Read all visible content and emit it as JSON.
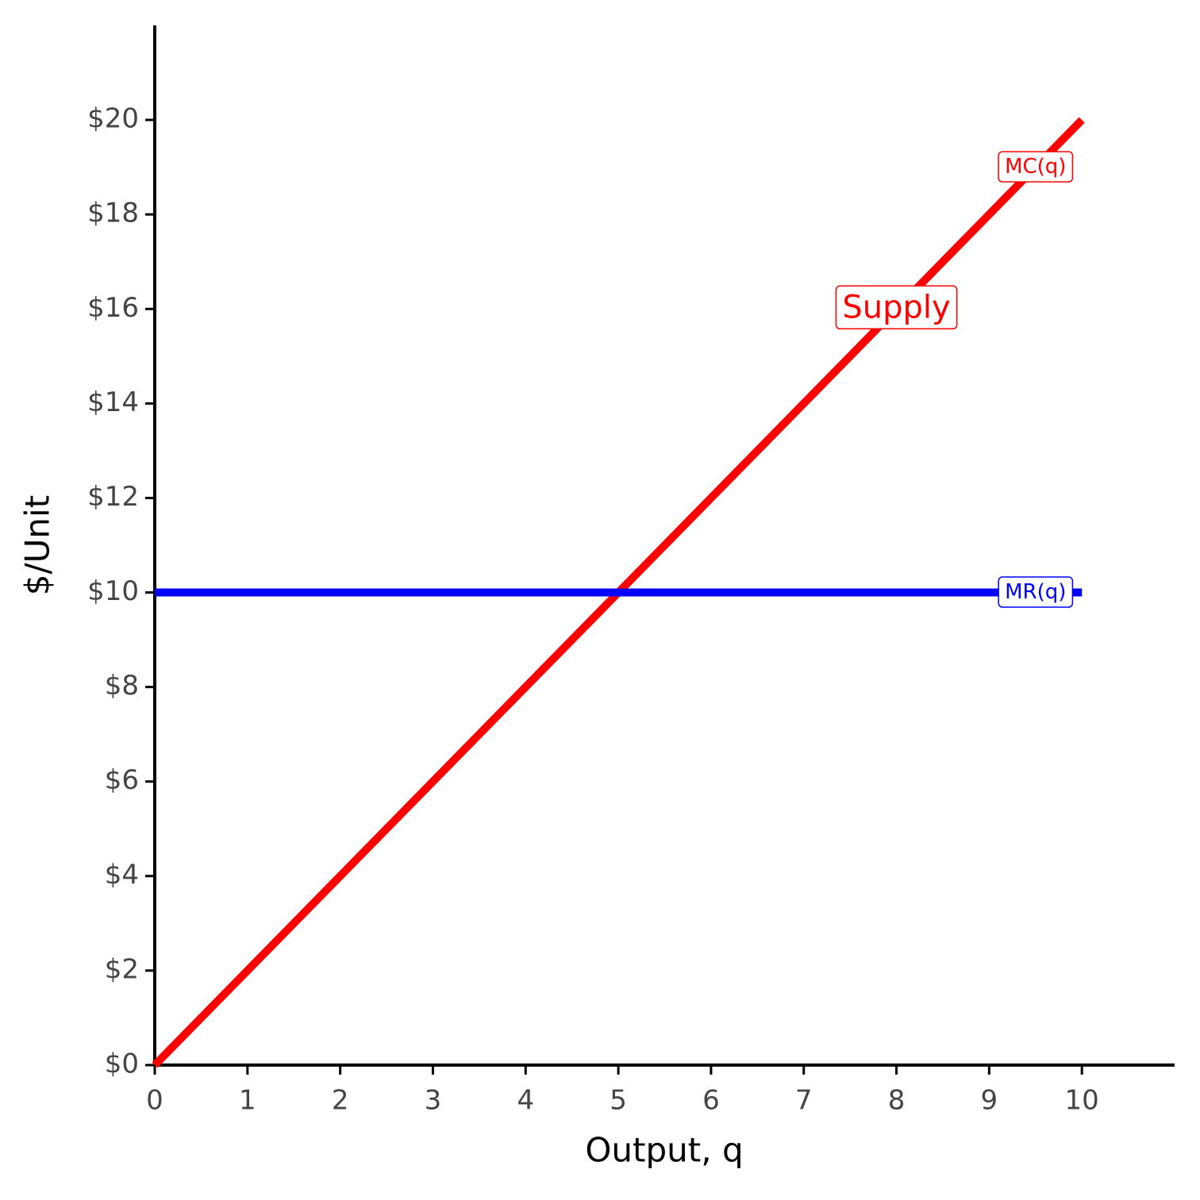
{
  "chart_data": {
    "type": "line",
    "x_label": "Output, q",
    "y_label": "$/Unit",
    "annotation": "Supply",
    "series": [
      {
        "name": "MC(q)",
        "color": "#ff0000",
        "x": [
          0,
          10
        ],
        "values": [
          0,
          20
        ]
      },
      {
        "name": "MR(q)",
        "color": "#0000ff",
        "x": [
          0,
          10
        ],
        "values": [
          10,
          10
        ]
      }
    ],
    "xlim": [
      0,
      11
    ],
    "xticks": [
      0,
      1,
      2,
      3,
      4,
      5,
      6,
      7,
      8,
      9,
      10
    ],
    "ylim": [
      0,
      22
    ],
    "yticks": [
      {
        "value": 0,
        "label": "$0"
      },
      {
        "value": 2,
        "label": "$2"
      },
      {
        "value": 4,
        "label": "$4"
      },
      {
        "value": 6,
        "label": "$6"
      },
      {
        "value": 8,
        "label": "$8"
      },
      {
        "value": 10,
        "label": "$10"
      },
      {
        "value": 12,
        "label": "$12"
      },
      {
        "value": 14,
        "label": "$14"
      },
      {
        "value": 16,
        "label": "$16"
      },
      {
        "value": 18,
        "label": "$18"
      },
      {
        "value": 20,
        "label": "$20"
      }
    ],
    "grid": false
  }
}
